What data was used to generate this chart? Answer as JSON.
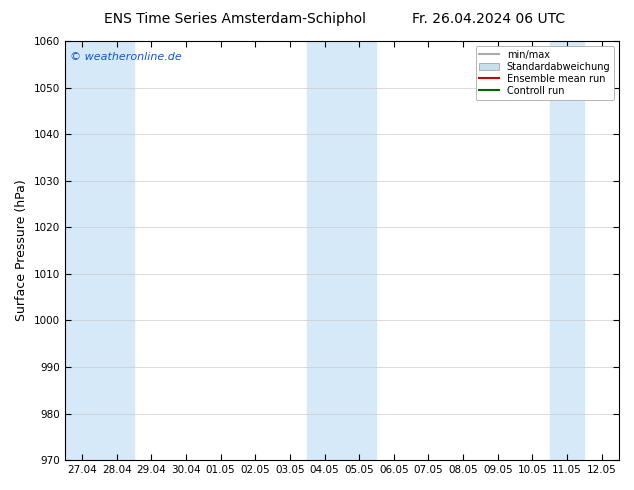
{
  "title_left": "ENS Time Series Amsterdam-Schiphol",
  "title_right": "Fr. 26.04.2024 06 UTC",
  "ylabel": "Surface Pressure (hPa)",
  "ylim": [
    970,
    1060
  ],
  "yticks": [
    970,
    980,
    990,
    1000,
    1010,
    1020,
    1030,
    1040,
    1050,
    1060
  ],
  "x_labels": [
    "27.04",
    "28.04",
    "29.04",
    "30.04",
    "01.05",
    "02.05",
    "03.05",
    "04.05",
    "05.05",
    "06.05",
    "07.05",
    "08.05",
    "09.05",
    "10.05",
    "11.05",
    "12.05"
  ],
  "watermark": "© weatheronline.de",
  "background_color": "#ffffff",
  "plot_bg_color": "#ffffff",
  "band_color": "#d6e9f8",
  "band_x_starts": [
    0,
    1,
    7,
    8,
    14
  ],
  "band_x_ends": [
    1,
    2,
    8,
    9,
    15
  ],
  "legend_items": [
    {
      "label": "min/max",
      "type": "line",
      "color": "#aaaaaa",
      "lw": 1.5
    },
    {
      "label": "Standardabweichung",
      "type": "patch",
      "color": "#c8dff0"
    },
    {
      "label": "Ensemble mean run",
      "type": "line",
      "color": "#cc0000",
      "lw": 1.5
    },
    {
      "label": "Controll run",
      "type": "line",
      "color": "#006600",
      "lw": 1.5
    }
  ],
  "title_fontsize": 10,
  "tick_fontsize": 7.5,
  "ylabel_fontsize": 9,
  "watermark_fontsize": 8,
  "watermark_color": "#1155cc"
}
